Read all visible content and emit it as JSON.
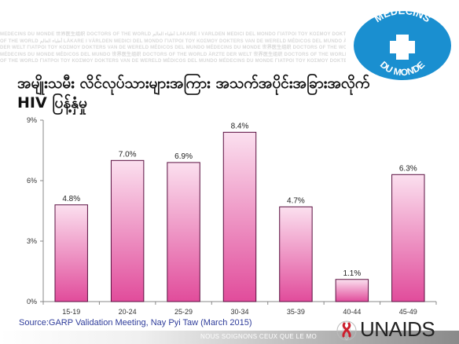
{
  "watermark_lines": [
    "MÉDECINS DU MONDE 世界医生组织 DOCTORS OF THE WORLD أطباء العالم LÄKARE I VÄRLDEN MEDICI DEL MONDO ΓΙΑΤΡΟΙ ΤΟΥ ΚΟΣΜΟΥ DOKTERS",
    "OF THE WORLD أطباء العالم LÄKARE I VÄRLDEN MEDICI DEL MONDO ΓΙΑΤΡΟΙ ΤΟΥ ΚΟΣΜΟΥ DOKTERS VAN DE WERELD MÉDICOS DEL MUNDO ÄRZTE",
    "DER WELT ΓΙΑΤΡΟΙ ΤΟΥ ΚΟΣΜΟΥ DOKTERS VAN DE WERELD MÉDICOS DEL MUNDO MÉDECINS DU MONDE 世界医生组织 DOCTORS OF THE WORLD",
    "MÉDECINS DU MONDE MÉDICOS DEL MUNDO 世界医生组织 DOCTORS OF THE WORLD ÄRZTE DER WELT 世界医生组织 DOCTORS OF THE WORLD LÄKARE",
    "OF THE WORLD ΓΙΑΤΡΟΙ ΤΟΥ ΚΟΣΜΟΥ DOKTERS VAN DE WERELD MÉDICOS DEL MUNDO MÉDECINS DU MONDE ΓΙΑΤΡΟΙ ΤΟΥ ΚΟΣΜΟΥ DOKTERS"
  ],
  "logos": {
    "mdm_line1": "MÉDECINS",
    "mdm_line2": "DU MONDE",
    "mdm_color": "#1a8fd0",
    "unaids_text": "UNAIDS"
  },
  "title_line1": "အမျိုးသမီး လိင်လုပ်သားများအကြား အသက်အပိုင်းအခြားအလိုက်",
  "title_line2": "HIV ပြန့်နှံမှု",
  "source": "Source:GARP  Validation Meeting,  Nay Pyi Taw (March 2015)",
  "footer": "NOUS SOIGNONS CEUX QUE LE MO",
  "chart_data": {
    "type": "bar",
    "categories": [
      "15-19",
      "20-24",
      "25-29",
      "30-34",
      "35-39",
      "40-44",
      "45-49"
    ],
    "values": [
      4.8,
      7.0,
      6.9,
      8.4,
      4.7,
      1.1,
      6.3
    ],
    "data_labels": [
      "4.8%",
      "7.0%",
      "6.9%",
      "8.4%",
      "4.7%",
      "1.1%",
      "6.3%"
    ],
    "ylim": [
      0,
      9
    ],
    "yticks": [
      0,
      3,
      6,
      9
    ],
    "ytick_labels": [
      "0%",
      "3%",
      "6%",
      "9%"
    ],
    "grid": false,
    "bar_color_top": "#fbe0ef",
    "bar_color_bottom": "#e14c9b"
  }
}
